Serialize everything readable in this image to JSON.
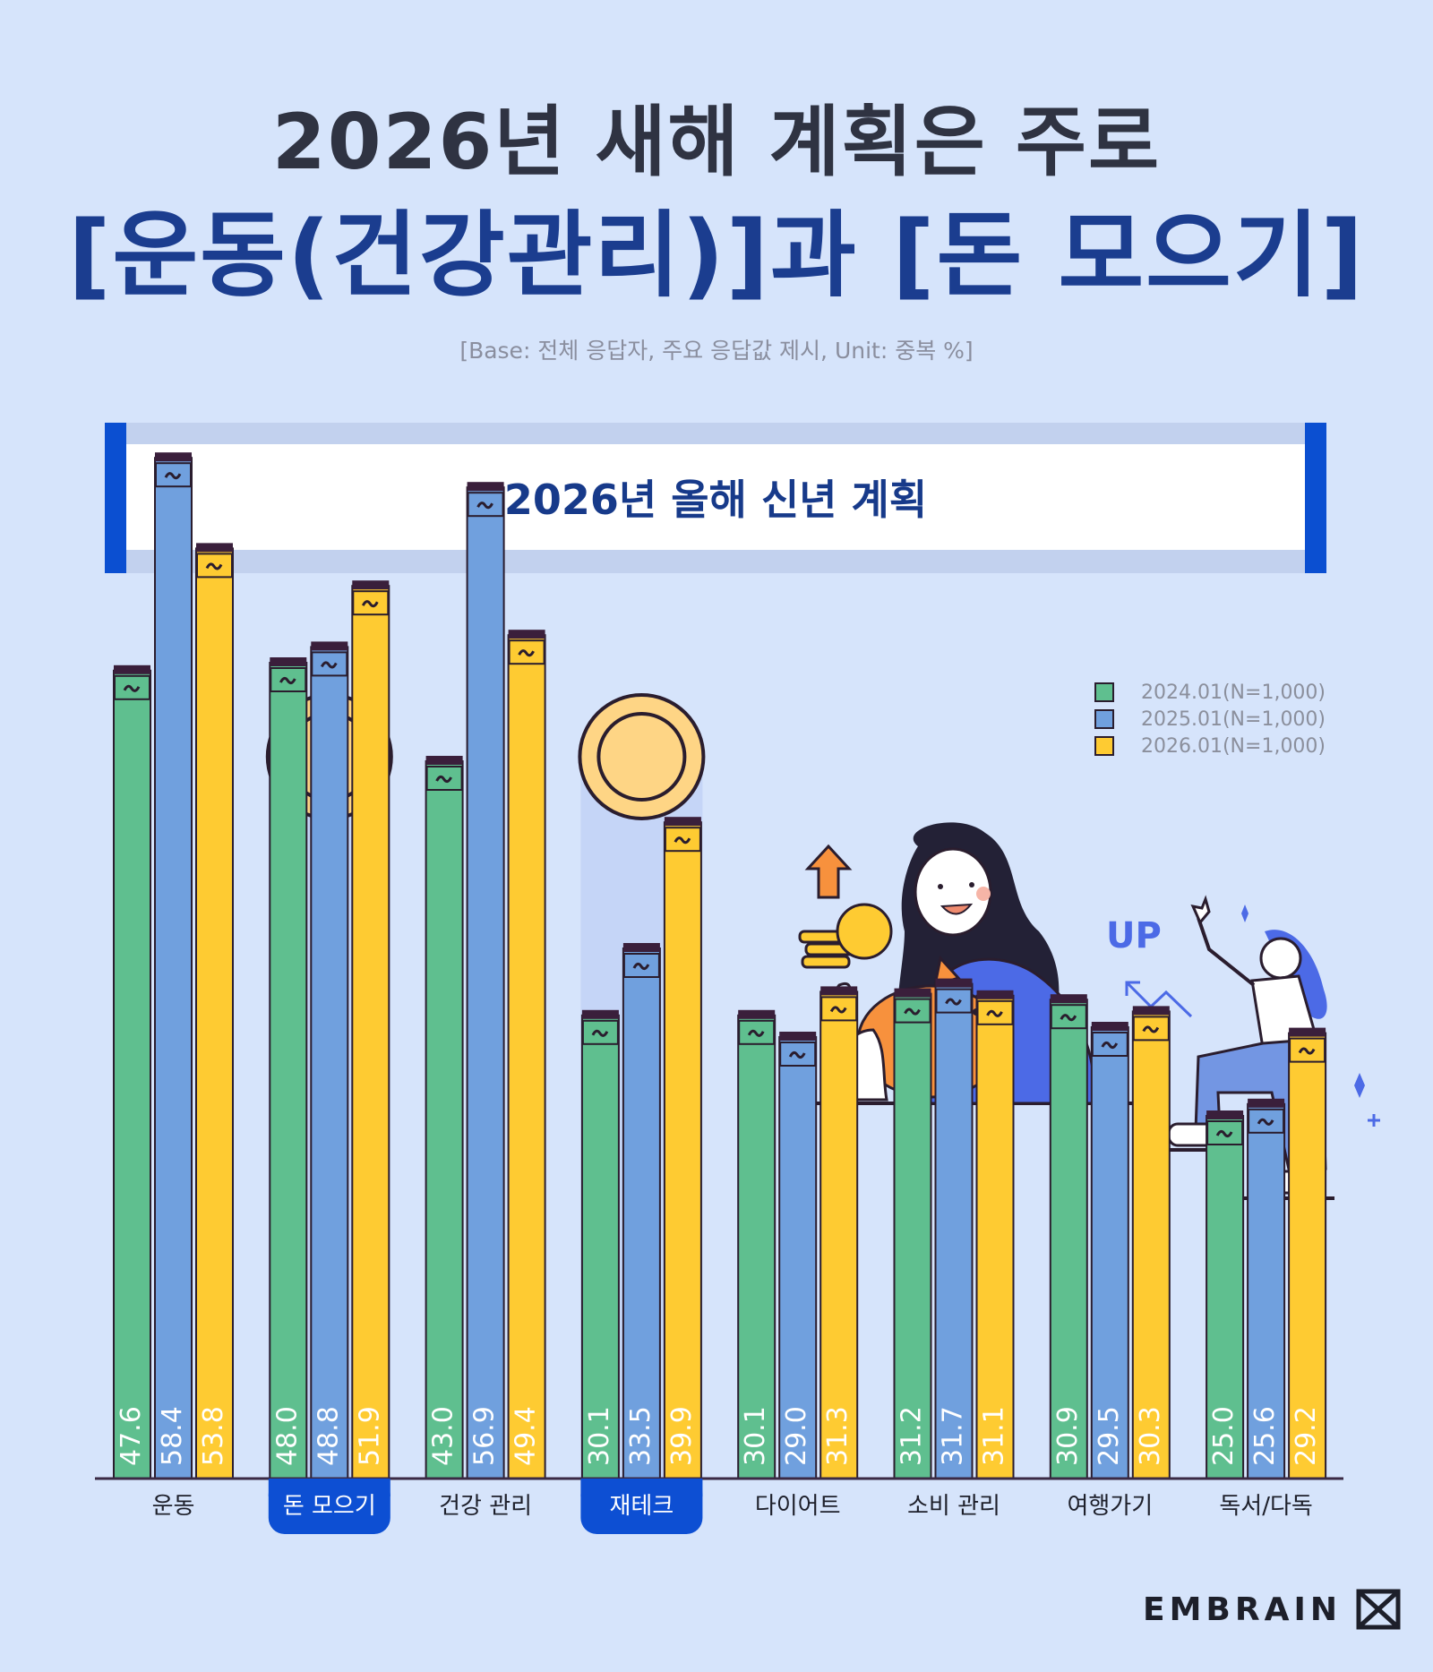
{
  "header": {
    "title_line1": "2026년 새해 계획은 주로",
    "title_line2": "[운동(건강관리)]과 [돈 모으기]",
    "base_note": "[Base: 전체 응답자, 주요 응답값 제시, Unit: 중복 %]"
  },
  "banner": {
    "title": "2026년 올해 신년 계획"
  },
  "illustration": {
    "up_label": "UP"
  },
  "brand": {
    "name": "EMBRAIN",
    "logo_icon": "embrain-logo-icon"
  },
  "colors": {
    "background": "#d6e4fb",
    "series_2024": "#5fbf8f",
    "series_2025": "#70a0de",
    "series_2026": "#fecb32",
    "highlight": "#0d4fd3",
    "outline": "#2a1d2e"
  },
  "chart_data": {
    "type": "bar",
    "categories": [
      "운동",
      "돈 모으기",
      "건강 관리",
      "재테크",
      "다이어트",
      "소비 관리",
      "여행가기",
      "독서/다독"
    ],
    "highlighted_categories": [
      "돈 모으기",
      "재테크"
    ],
    "series": [
      {
        "name": "2024.01(N=1,000)",
        "color": "#5fbf8f",
        "values": [
          47.6,
          48.0,
          43.0,
          30.1,
          30.1,
          31.2,
          30.9,
          25.0
        ]
      },
      {
        "name": "2025.01(N=1,000)",
        "color": "#70a0de",
        "values": [
          58.4,
          48.8,
          56.9,
          33.5,
          29.0,
          31.7,
          29.5,
          25.6
        ]
      },
      {
        "name": "2026.01(N=1,000)",
        "color": "#fecb32",
        "values": [
          53.8,
          51.9,
          49.4,
          39.9,
          31.3,
          31.1,
          30.3,
          29.2
        ]
      }
    ],
    "value_format": "0.1",
    "axis_break": true,
    "legend_position": "top-right",
    "grid": false
  }
}
